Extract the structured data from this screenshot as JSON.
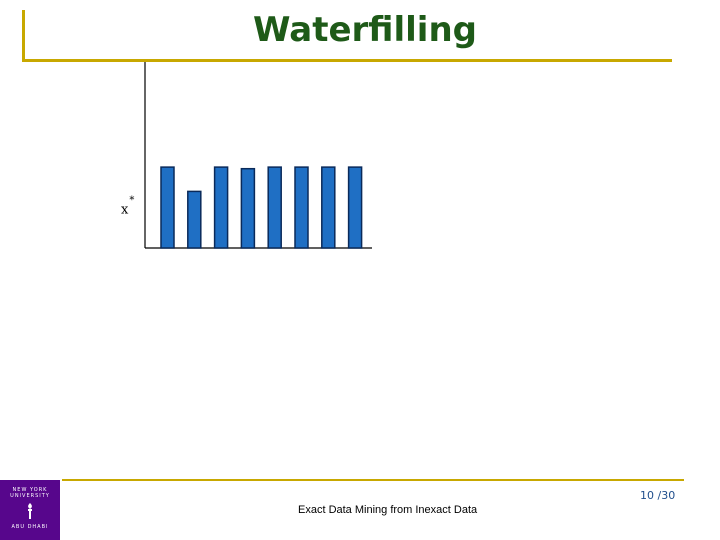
{
  "slide": {
    "title": "Waterfilling",
    "footer_text": "Exact Data Mining from Inexact Data",
    "page_number": "10 /30"
  },
  "logo": {
    "line1": "NEW YORK",
    "line2": "UNIVERSITY",
    "line3": "ABU DHABI"
  },
  "colors": {
    "title": "#1e5a18",
    "accent_rule": "#c8a800",
    "bar_fill": "#1f6fc4",
    "bar_stroke": "#0a2a5a",
    "logo_bg": "#57068c"
  },
  "chart_data": {
    "type": "bar",
    "categories": [
      "",
      "",
      "",
      "",
      "",
      "",
      "",
      ""
    ],
    "values": [
      1.0,
      0.7,
      1.0,
      0.98,
      1.0,
      1.0,
      1.0,
      1.0
    ],
    "ylabel": "x",
    "ylabel_superscript": "*",
    "xlabel": "",
    "ylim": [
      0,
      2.3
    ]
  }
}
